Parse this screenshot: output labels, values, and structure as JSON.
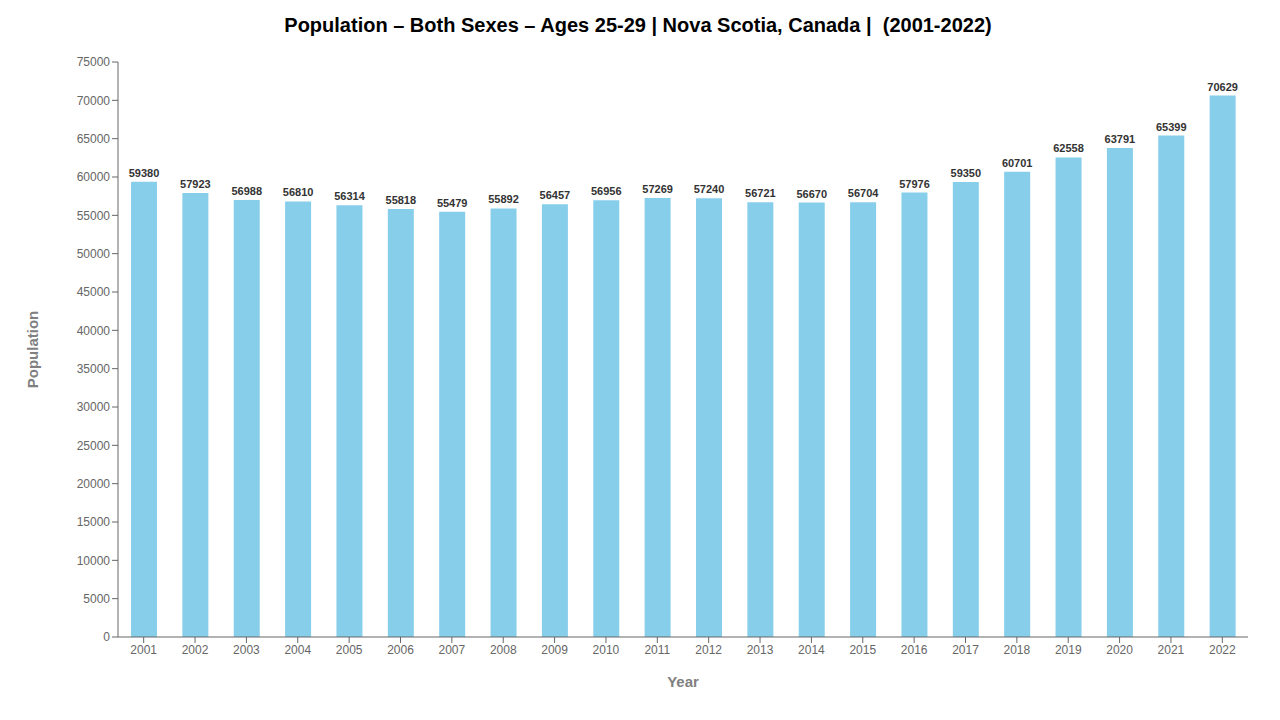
{
  "chart_data": {
    "type": "bar",
    "title": "Population – Both Sexes – Ages 25-29 | Nova Scotia, Canada |  (2001-2022)",
    "x_label": "Year",
    "y_label": "Population",
    "categories": [
      "2001",
      "2002",
      "2003",
      "2004",
      "2005",
      "2006",
      "2007",
      "2008",
      "2009",
      "2010",
      "2011",
      "2012",
      "2013",
      "2014",
      "2015",
      "2016",
      "2017",
      "2018",
      "2019",
      "2020",
      "2021",
      "2022"
    ],
    "values": [
      59380,
      57923,
      56988,
      56810,
      56314,
      55818,
      55479,
      55892,
      56457,
      56956,
      57269,
      57240,
      56721,
      56670,
      56704,
      57976,
      59350,
      60701,
      62558,
      63791,
      65399,
      70629
    ],
    "color": "#87CEEB",
    "ylim": [
      0,
      75000
    ],
    "yticks": [
      0,
      5000,
      10000,
      15000,
      20000,
      25000,
      30000,
      35000,
      40000,
      45000,
      50000,
      55000,
      60000,
      65000,
      70000,
      75000
    ],
    "grid": false,
    "data_labels": true
  }
}
